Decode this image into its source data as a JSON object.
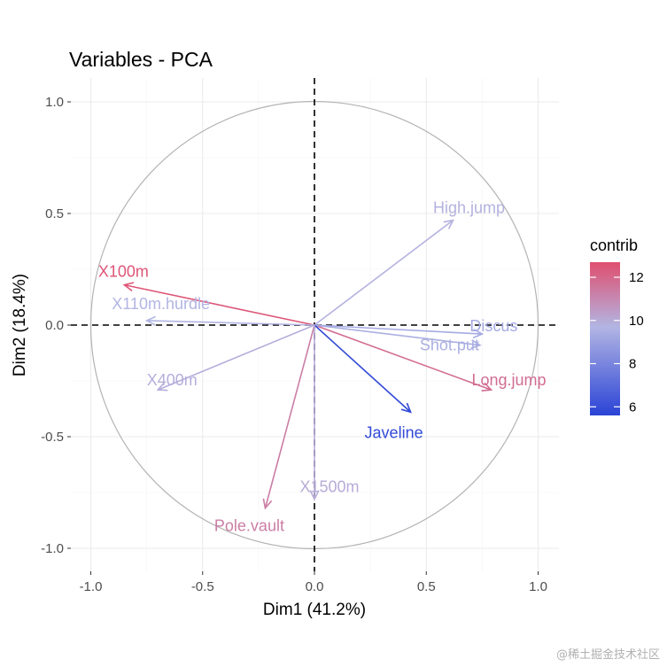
{
  "chart_data": {
    "type": "scatter",
    "subtype": "pca-variable-correlation-circle",
    "title": "Variables - PCA",
    "xlabel": "Dim1 (41.2%)",
    "ylabel": "Dim2 (18.4%)",
    "xlim": [
      -1.0,
      1.0
    ],
    "ylim": [
      -1.0,
      1.0
    ],
    "xticks": [
      -1.0,
      -0.5,
      0.0,
      0.5,
      1.0
    ],
    "yticks": [
      -1.0,
      -0.5,
      0.0,
      0.5,
      1.0
    ],
    "xtick_labels": [
      "-1.0",
      "-0.5",
      "0.0",
      "0.5",
      "1.0"
    ],
    "ytick_labels": [
      "-1.0",
      "-0.5",
      "0.0",
      "0.5",
      "1.0"
    ],
    "grid": true,
    "reference_lines": {
      "x": 0,
      "y": 0,
      "style": "dashed"
    },
    "circle_radius": 1.0,
    "variables": [
      {
        "name": "X100m",
        "x": -0.85,
        "y": 0.18,
        "contrib": 12.5
      },
      {
        "name": "Long.jump",
        "x": 0.79,
        "y": -0.29,
        "contrib": 11.8
      },
      {
        "name": "Shot.put",
        "x": 0.74,
        "y": -0.09,
        "contrib": 9.5
      },
      {
        "name": "High.jump",
        "x": 0.62,
        "y": 0.47,
        "contrib": 9.8
      },
      {
        "name": "X400m",
        "x": -0.7,
        "y": -0.29,
        "contrib": 9.9
      },
      {
        "name": "X110m.hurdle",
        "x": -0.75,
        "y": 0.02,
        "contrib": 9.7
      },
      {
        "name": "Discus",
        "x": 0.75,
        "y": -0.04,
        "contrib": 9.3
      },
      {
        "name": "Pole.vault",
        "x": -0.22,
        "y": -0.82,
        "contrib": 11.3
      },
      {
        "name": "Javeline",
        "x": 0.43,
        "y": -0.39,
        "contrib": 5.8
      },
      {
        "name": "X1500m",
        "x": 0.0,
        "y": -0.78,
        "contrib": 10.0
      }
    ],
    "legend": {
      "title": "contrib",
      "position": "right",
      "min": 5.6,
      "max": 12.7,
      "ticks": [
        6,
        8,
        10,
        12
      ],
      "tick_labels": [
        "6",
        "8",
        "10",
        "12"
      ],
      "colors": {
        "low": "#2a43d6",
        "mid": "#b2b5e3",
        "high": "#e04e6f"
      }
    }
  },
  "watermark": "@稀土掘金技术社区"
}
